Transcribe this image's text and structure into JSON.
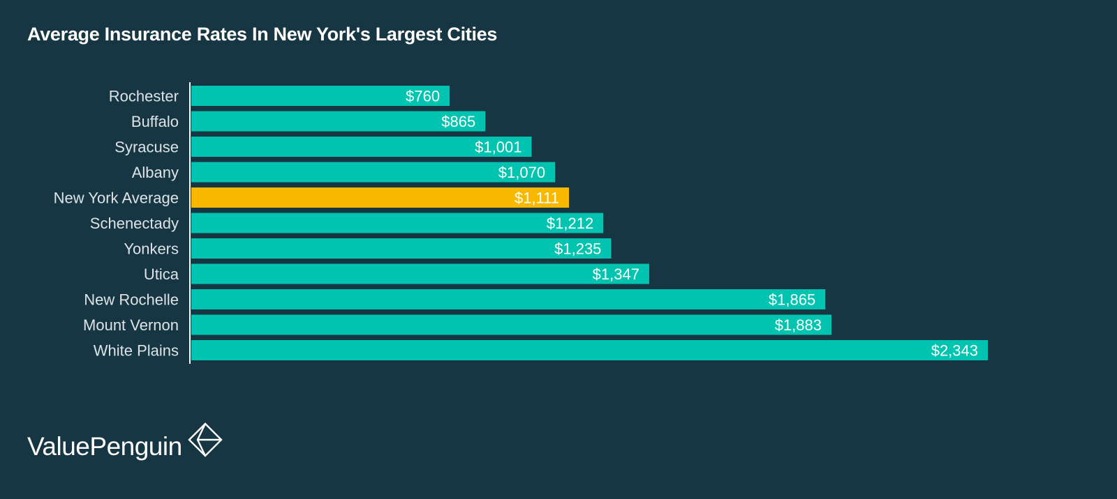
{
  "chart_data": {
    "type": "bar",
    "orientation": "horizontal",
    "title": "Average Insurance Rates In New York's Largest Cities",
    "categories": [
      "Rochester",
      "Buffalo",
      "Syracuse",
      "Albany",
      "New York Average",
      "Schenectady",
      "Yonkers",
      "Utica",
      "New Rochelle",
      "Mount Vernon",
      "White Plains"
    ],
    "values": [
      760,
      865,
      1001,
      1070,
      1111,
      1212,
      1235,
      1347,
      1865,
      1883,
      2343
    ],
    "labels": [
      "$760",
      "$865",
      "$1,001",
      "$1,070",
      "$1,111",
      "$1,212",
      "$1,235",
      "$1,347",
      "$1,865",
      "$1,883",
      "$2,343"
    ],
    "highlight": "New York Average",
    "xlim": [
      0,
      2343
    ],
    "xlabel": "",
    "ylabel": "",
    "grid": false,
    "colors": {
      "bar": "#00c4b0",
      "highlight": "#f9b800",
      "background": "#163643",
      "text": "#ffffff",
      "category_text": "#dde3e6",
      "axis": "#ffffff"
    }
  },
  "brand": {
    "name": "ValuePenguin",
    "logo_icon": "valuepenguin-diamond-icon"
  }
}
